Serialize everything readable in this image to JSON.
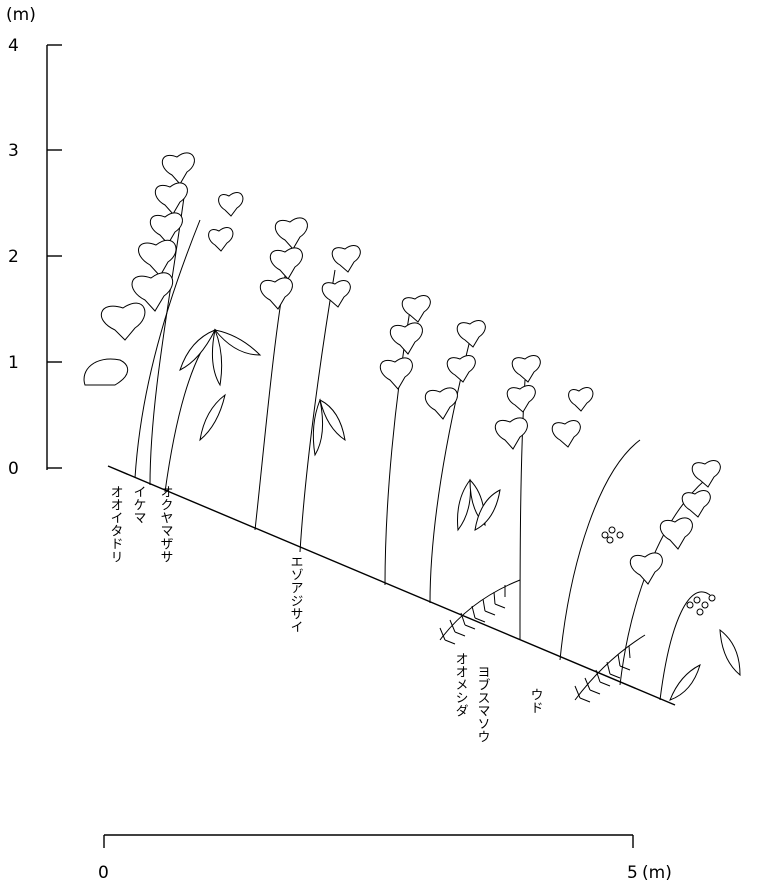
{
  "y_axis": {
    "unit_label": "(m)",
    "ticks": [
      "4",
      "3",
      "2",
      "1",
      "0"
    ]
  },
  "x_axis": {
    "start_label": "0",
    "end_label": "5",
    "unit_label": "(m)"
  },
  "species_labels": [
    "オオイタドリ",
    "イケマ",
    "オクヤマザサ",
    "エゾアジサイ",
    "オオメシダ",
    "ヨブスマソウ",
    "ウド"
  ],
  "icons": [
    "heart-leaf-vine",
    "bamboo-leaf-cluster",
    "fern-frond",
    "berry-cluster"
  ]
}
